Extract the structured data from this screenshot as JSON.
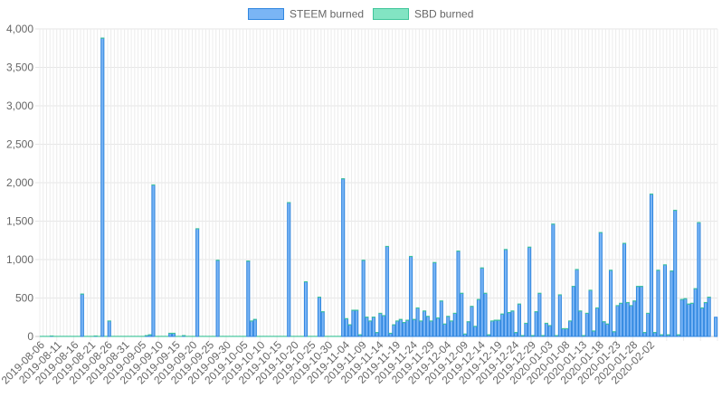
{
  "chart_data": {
    "type": "bar",
    "stacked": true,
    "legend_position": "top",
    "grid": true,
    "ylim": [
      0,
      4000
    ],
    "y_ticks": [
      "0",
      "500",
      "1,000",
      "1,500",
      "2,000",
      "2,500",
      "3,000",
      "3,500",
      "4,000"
    ],
    "start_date": "2019-08-06",
    "x_tick_labels": [
      "2019-08-06",
      "2019-08-11",
      "2019-08-16",
      "2019-08-21",
      "2019-08-26",
      "2019-08-31",
      "2019-09-05",
      "2019-09-10",
      "2019-09-15",
      "2019-09-20",
      "2019-09-25",
      "2019-09-30",
      "2019-10-05",
      "2019-10-10",
      "2019-10-15",
      "2019-10-20",
      "2019-10-25",
      "2019-10-30",
      "2019-11-04",
      "2019-11-09",
      "2019-11-14",
      "2019-11-19",
      "2019-11-24",
      "2019-11-29",
      "2019-12-04",
      "2019-12-09",
      "2019-12-14",
      "2019-12-19",
      "2019-12-24",
      "2019-12-29",
      "2020-01-03",
      "2020-01-08",
      "2020-01-13",
      "2020-01-18",
      "2020-01-23",
      "2020-01-28",
      "2020-02-02"
    ],
    "series": [
      {
        "name": "STEEM burned",
        "color": "#7ab5f5",
        "border": "#2f86e0",
        "values": [
          0,
          0,
          0,
          5,
          0,
          0,
          0,
          0,
          0,
          0,
          0,
          0,
          550,
          0,
          0,
          0,
          5,
          0,
          3880,
          0,
          200,
          0,
          0,
          0,
          0,
          0,
          0,
          0,
          0,
          0,
          0,
          10,
          20,
          1970,
          0,
          0,
          0,
          0,
          40,
          40,
          0,
          0,
          10,
          0,
          0,
          0,
          1400,
          0,
          0,
          0,
          0,
          0,
          990,
          0,
          0,
          0,
          0,
          0,
          0,
          0,
          0,
          980,
          200,
          220,
          0,
          0,
          0,
          0,
          0,
          0,
          0,
          0,
          0,
          1740,
          0,
          0,
          0,
          0,
          710,
          0,
          0,
          0,
          510,
          320,
          0,
          0,
          0,
          0,
          0,
          2050,
          230,
          150,
          340,
          340,
          20,
          990,
          250,
          200,
          250,
          50,
          300,
          270,
          1170,
          40,
          150,
          200,
          220,
          180,
          210,
          1040,
          220,
          370,
          200,
          330,
          260,
          200,
          960,
          240,
          460,
          160,
          260,
          200,
          300,
          1110,
          560,
          30,
          190,
          390,
          130,
          480,
          890,
          560,
          20,
          200,
          210,
          210,
          290,
          1130,
          310,
          330,
          50,
          420,
          10,
          170,
          1160,
          10,
          320,
          560,
          10,
          170,
          140,
          1460,
          10,
          540,
          100,
          100,
          200,
          650,
          870,
          330,
          10,
          300,
          600,
          70,
          370,
          1350,
          190,
          160,
          860,
          60,
          400,
          430,
          1210,
          440,
          400,
          460,
          650,
          650,
          50,
          300,
          1850,
          50,
          860,
          20,
          930,
          20,
          850,
          1640,
          20,
          480,
          490,
          420,
          430,
          620,
          1480,
          370,
          440,
          510,
          0,
          250
        ]
      },
      {
        "name": "SBD burned",
        "color": "#82e4c3",
        "border": "#3fc59a",
        "values": [
          2,
          2,
          2,
          2,
          2,
          2,
          2,
          2,
          2,
          2,
          2,
          2,
          2,
          2,
          2,
          2,
          2,
          2,
          2,
          2,
          2,
          2,
          2,
          2,
          2,
          2,
          2,
          2,
          2,
          2,
          2,
          2,
          2,
          2,
          2,
          2,
          2,
          2,
          2,
          2,
          2,
          2,
          2,
          2,
          2,
          2,
          2,
          2,
          2,
          2,
          2,
          2,
          2,
          2,
          2,
          2,
          2,
          2,
          2,
          2,
          2,
          2,
          2,
          2,
          2,
          2,
          2,
          2,
          2,
          2,
          2,
          2,
          2,
          2,
          2,
          2,
          2,
          2,
          2,
          2,
          2,
          2,
          2,
          2,
          2,
          2,
          2,
          2,
          2,
          2,
          2,
          2,
          2,
          2,
          2,
          2,
          2,
          2,
          2,
          2,
          2,
          2,
          2,
          2,
          2,
          2,
          2,
          2,
          2,
          2,
          2,
          2,
          2,
          2,
          2,
          2,
          2,
          2,
          2,
          2,
          2,
          2,
          2,
          2,
          2,
          2,
          2,
          2,
          2,
          2,
          2,
          2,
          2,
          2,
          2,
          2,
          2,
          2,
          2,
          2,
          2,
          2,
          2,
          2,
          2,
          2,
          2,
          2,
          2,
          2,
          2,
          2,
          2,
          2,
          2,
          2,
          2,
          2,
          2,
          2,
          2,
          2,
          2,
          2,
          2,
          2,
          2,
          2,
          2,
          2,
          2,
          2,
          2,
          2,
          2,
          2,
          2,
          2,
          2,
          2,
          2,
          2,
          2,
          2,
          2,
          2,
          2,
          2,
          2,
          2,
          2,
          2,
          2,
          2,
          2,
          2,
          2,
          2
        ]
      }
    ]
  }
}
